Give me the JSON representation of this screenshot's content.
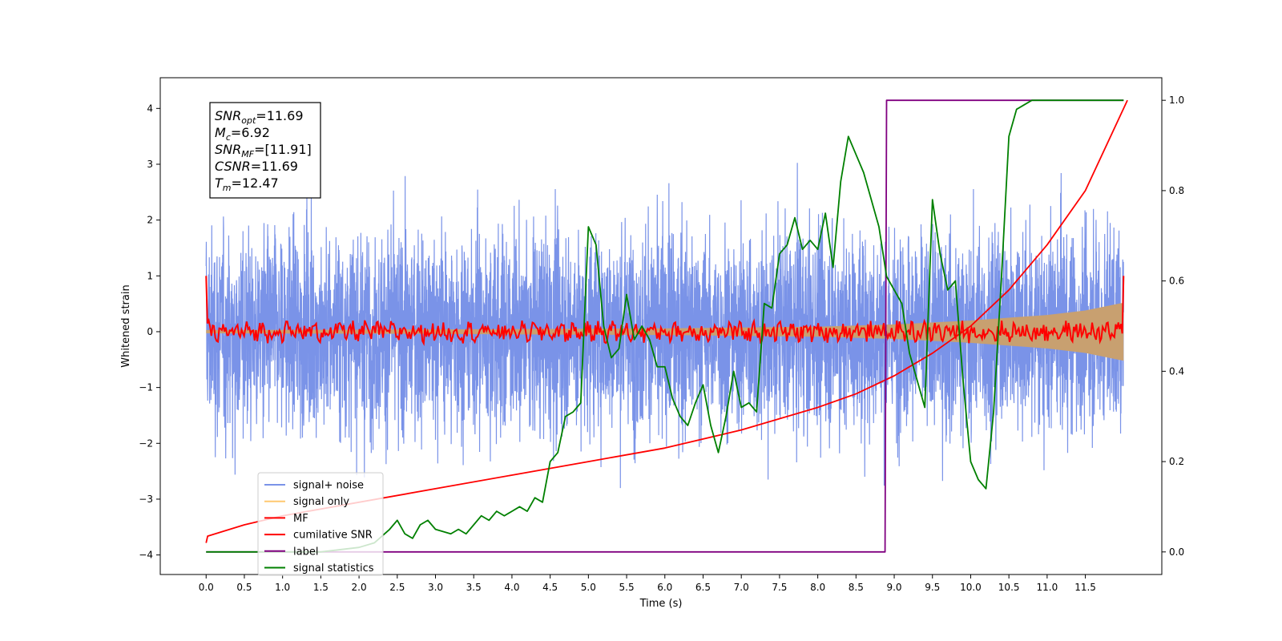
{
  "chart_data": {
    "type": "line",
    "xlabel": "Time (s)",
    "ylabel": "Whitened strain",
    "xlim": [
      -0.6,
      12.5
    ],
    "ylim": [
      -4.35,
      4.55
    ],
    "y2lim": [
      -0.05,
      1.05
    ],
    "xticks": [
      "0.0",
      "0.5",
      "1.0",
      "1.5",
      "2.0",
      "2.5",
      "3.0",
      "3.5",
      "4.0",
      "4.5",
      "5.0",
      "5.5",
      "6.0",
      "6.5",
      "7.0",
      "7.5",
      "8.0",
      "8.5",
      "9.0",
      "9.5",
      "10.0",
      "10.5",
      "11.0",
      "11.5"
    ],
    "yticks": [
      "−4",
      "−3",
      "−2",
      "−1",
      "0",
      "1",
      "2",
      "3",
      "4"
    ],
    "y2ticks": [
      "0.0",
      "0.2",
      "0.4",
      "0.6",
      "0.8",
      "1.0"
    ],
    "annotation": [
      {
        "base": "SNR",
        "sub": "opt",
        "value": "=11.69"
      },
      {
        "base": "M",
        "sub": "c",
        "value": "=6.92"
      },
      {
        "base": "SNR",
        "sub": "MF",
        "value": "=[11.91]"
      },
      {
        "base": "CSNR",
        "sub": "",
        "value": "=11.69"
      },
      {
        "base": "T",
        "sub": "m",
        "value": "=12.47"
      }
    ],
    "legend_position": "lower-left",
    "legend": [
      {
        "label": "signal+ noise",
        "color": "#7a93e8"
      },
      {
        "label": "signal only",
        "color": "#ffc870"
      },
      {
        "label": "MF",
        "color": "#ff0000"
      },
      {
        "label": "cumilative SNR",
        "color": "#ff0000"
      },
      {
        "label": "label",
        "color": "#800080"
      },
      {
        "label": "signal statistics",
        "color": "#008000"
      }
    ],
    "series": [
      {
        "key": "noise",
        "axis": "left",
        "color": "#7a93e8",
        "note": "dense noise band approx. -2.6 to +2.6 with spikes between -3.9 and +3.7",
        "t_range": [
          0,
          12.0
        ]
      },
      {
        "key": "signal_envelope",
        "axis": "left",
        "color": "#c8a070",
        "x": [
          0,
          3,
          6,
          8,
          9,
          10,
          11,
          11.5,
          12.0
        ],
        "upper": [
          0.03,
          0.04,
          0.06,
          0.09,
          0.13,
          0.2,
          0.3,
          0.38,
          0.52
        ],
        "lower": [
          -0.03,
          -0.04,
          -0.06,
          -0.09,
          -0.13,
          -0.2,
          -0.3,
          -0.38,
          -0.52
        ]
      },
      {
        "key": "mf",
        "axis": "left",
        "color": "#ff0000",
        "note": "oscillates around 0 with amplitude about 0.15; spikes to 1.0 at both ends",
        "t_range": [
          0,
          12.0
        ]
      },
      {
        "key": "cum_snr",
        "axis": "right",
        "color": "#ff0000",
        "x": [
          0,
          0.02,
          0.5,
          1.0,
          2.0,
          3.0,
          4.0,
          5.0,
          6.0,
          7.0,
          8.0,
          8.5,
          9.0,
          9.5,
          10.0,
          10.5,
          11.0,
          11.5,
          12.05
        ],
        "y": [
          0.02,
          0.035,
          0.06,
          0.08,
          0.11,
          0.14,
          0.17,
          0.2,
          0.23,
          0.27,
          0.32,
          0.35,
          0.39,
          0.44,
          0.5,
          0.58,
          0.68,
          0.8,
          1.0
        ]
      },
      {
        "key": "label",
        "axis": "right",
        "color": "#800080",
        "x": [
          0,
          8.88,
          8.9,
          9.05,
          12.0
        ],
        "y": [
          0,
          0,
          1,
          1,
          1
        ]
      },
      {
        "key": "stat",
        "axis": "right",
        "color": "#008000",
        "x": [
          0,
          0.5,
          1,
          1.5,
          2,
          2.2,
          2.4,
          2.5,
          2.6,
          2.7,
          2.8,
          2.9,
          3.0,
          3.2,
          3.3,
          3.4,
          3.5,
          3.6,
          3.7,
          3.8,
          3.9,
          4.0,
          4.1,
          4.2,
          4.3,
          4.4,
          4.5,
          4.6,
          4.7,
          4.8,
          4.9,
          5.0,
          5.1,
          5.2,
          5.3,
          5.4,
          5.5,
          5.6,
          5.7,
          5.8,
          5.9,
          6.0,
          6.1,
          6.2,
          6.3,
          6.4,
          6.5,
          6.6,
          6.7,
          6.8,
          6.9,
          7.0,
          7.1,
          7.2,
          7.3,
          7.4,
          7.5,
          7.6,
          7.7,
          7.8,
          7.9,
          8.0,
          8.1,
          8.2,
          8.3,
          8.4,
          8.5,
          8.6,
          8.7,
          8.8,
          8.9,
          9.0,
          9.1,
          9.2,
          9.3,
          9.4,
          9.5,
          9.6,
          9.7,
          9.8,
          9.9,
          10.0,
          10.1,
          10.2,
          10.3,
          10.4,
          10.5,
          10.6,
          10.7,
          10.8,
          11.0,
          11.2,
          11.5,
          11.8,
          12.0
        ],
        "y": [
          0.0,
          0.0,
          0.0,
          0.0,
          0.01,
          0.02,
          0.05,
          0.07,
          0.04,
          0.03,
          0.06,
          0.07,
          0.05,
          0.04,
          0.05,
          0.04,
          0.06,
          0.08,
          0.07,
          0.09,
          0.08,
          0.09,
          0.1,
          0.09,
          0.12,
          0.11,
          0.2,
          0.22,
          0.3,
          0.31,
          0.33,
          0.72,
          0.68,
          0.5,
          0.43,
          0.45,
          0.57,
          0.47,
          0.5,
          0.47,
          0.41,
          0.41,
          0.34,
          0.3,
          0.28,
          0.33,
          0.37,
          0.28,
          0.22,
          0.3,
          0.4,
          0.32,
          0.33,
          0.31,
          0.55,
          0.54,
          0.66,
          0.68,
          0.74,
          0.67,
          0.69,
          0.67,
          0.75,
          0.63,
          0.82,
          0.92,
          0.88,
          0.84,
          0.78,
          0.72,
          0.61,
          0.58,
          0.55,
          0.44,
          0.38,
          0.32,
          0.78,
          0.66,
          0.58,
          0.6,
          0.38,
          0.2,
          0.16,
          0.14,
          0.31,
          0.6,
          0.92,
          0.98,
          0.99,
          1.0,
          1.0,
          1.0,
          1.0,
          1.0,
          1.0
        ]
      }
    ]
  }
}
